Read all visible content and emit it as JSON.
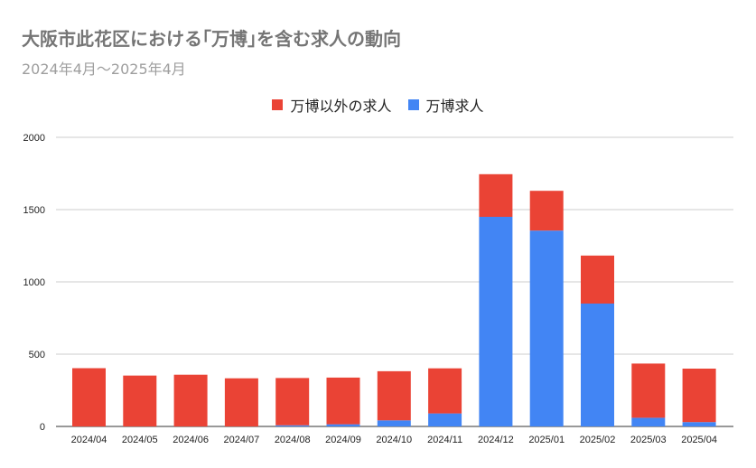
{
  "chart_data": {
    "type": "bar",
    "stacked": true,
    "title": "大阪市此花区における｢万博｣を含む求人の動向",
    "subtitle": "2024年4月～2025年4月",
    "categories": [
      "2024/04",
      "2024/05",
      "2024/06",
      "2024/07",
      "2024/08",
      "2024/09",
      "2024/10",
      "2024/11",
      "2024/12",
      "2025/01",
      "2025/02",
      "2025/03",
      "2025/04"
    ],
    "series": [
      {
        "name": "万博求人",
        "color": "#4285f4",
        "values": [
          0,
          0,
          0,
          0,
          8,
          15,
          42,
          90,
          1450,
          1355,
          850,
          60,
          30
        ]
      },
      {
        "name": "万博以外の求人",
        "color": "#ea4335",
        "values": [
          403,
          352,
          358,
          333,
          327,
          323,
          340,
          312,
          295,
          275,
          332,
          375,
          370
        ]
      }
    ],
    "legend_order": [
      "万博以外の求人",
      "万博求人"
    ],
    "ylim": [
      0,
      2000
    ],
    "yticks": [
      0,
      500,
      1000,
      1500,
      2000
    ],
    "grid": true,
    "legend_position": "top-center"
  }
}
